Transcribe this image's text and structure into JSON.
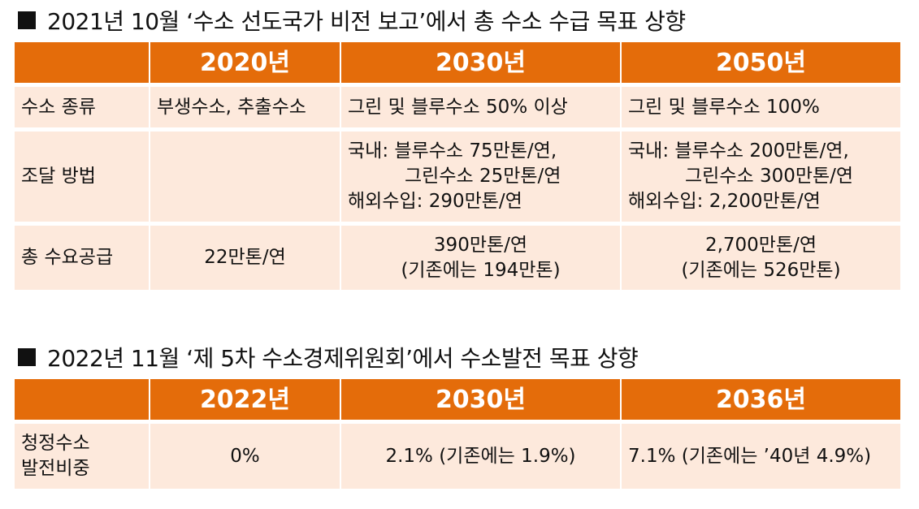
{
  "sections": [
    {
      "title": "2021년 10월 ‘수소 선도국가 비전 보고’에서 총 수소 수급 목표 상향",
      "table": {
        "header": [
          "2020년",
          "2030년",
          "2050년"
        ],
        "rows": [
          [
            [
              "수소 종류"
            ],
            [
              "부생수소, 추출수소"
            ],
            [
              "그린 및 블루수소 50% 이상"
            ],
            [
              "그린 및 블루수소 100%"
            ]
          ],
          [
            [
              "조달 방법"
            ],
            [],
            [
              "국내: 블루수소 75만톤/연,",
              "그린수소 25만톤/연",
              "해외수입: 290만톤/연"
            ],
            [
              "국내: 블루수소 200만톤/연,",
              "그린수소 300만톤/연",
              "해외수입: 2,200만톤/연"
            ]
          ],
          [
            [
              "총 수요공급"
            ],
            [
              "22만톤/연"
            ],
            [
              "390만톤/연",
              "(기존에는 194만톤)"
            ],
            [
              "2,700만톤/연",
              "(기존에는 526만톤)"
            ]
          ]
        ]
      }
    },
    {
      "title": "2022년 11월 ‘제 5차 수소경제위원회’에서 수소발전 목표 상향",
      "table": {
        "header": [
          "2022년",
          "2030년",
          "2036년"
        ],
        "rows": [
          [
            [
              "청정수소",
              "발전비중"
            ],
            [
              "0%"
            ],
            [
              "2.1% (기존에는 1.9%)"
            ],
            [
              "7.1% (기존에는 ’40년 4.9%)"
            ]
          ]
        ]
      }
    }
  ]
}
